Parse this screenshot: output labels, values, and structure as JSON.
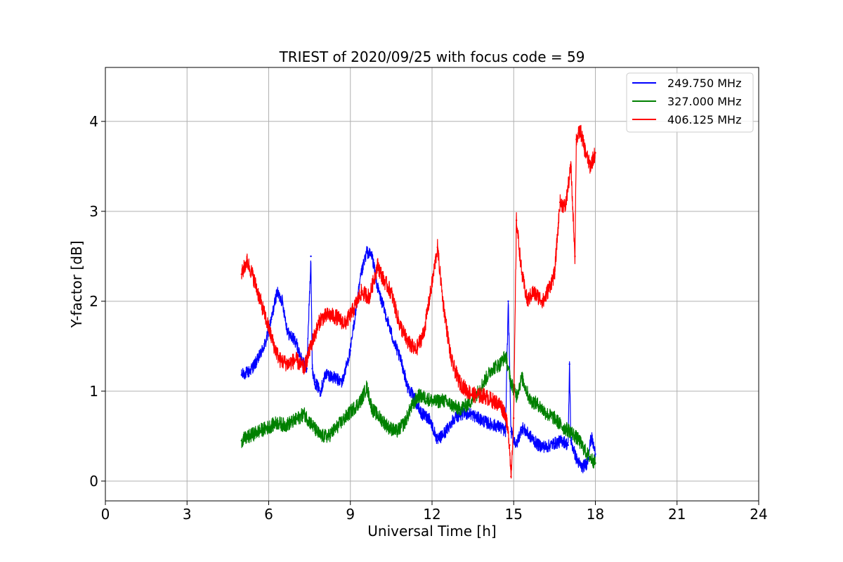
{
  "chart_data": {
    "type": "line",
    "title": "TRIEST of 2020/09/25 with focus code = 59",
    "xlabel": "Universal Time [h]",
    "ylabel": "Y-factor [dB]",
    "xlim": [
      0,
      24
    ],
    "ylim": [
      -0.22,
      4.6
    ],
    "xticks": [
      0,
      3,
      6,
      9,
      12,
      15,
      18,
      21,
      24
    ],
    "yticks": [
      0,
      1,
      2,
      3,
      4
    ],
    "grid": true,
    "legend_position": "top-right",
    "series": [
      {
        "name": "249.750 MHz",
        "color": "#0000ff",
        "noise": 0.07,
        "x": [
          5.0,
          5.3,
          5.6,
          5.9,
          6.1,
          6.3,
          6.5,
          6.7,
          7.0,
          7.2,
          7.4,
          7.55,
          7.6,
          7.7,
          7.9,
          8.1,
          8.4,
          8.7,
          9.0,
          9.2,
          9.4,
          9.6,
          9.8,
          10.0,
          10.3,
          10.6,
          10.9,
          11.1,
          11.3,
          11.6,
          11.9,
          12.2,
          12.5,
          12.8,
          13.1,
          13.4,
          13.7,
          14.0,
          14.3,
          14.5,
          14.7,
          14.8,
          14.9,
          15.1,
          15.3,
          15.6,
          15.9,
          16.2,
          16.5,
          16.8,
          17.0,
          17.05,
          17.1,
          17.3,
          17.5,
          17.7,
          17.85,
          18.0
        ],
        "y": [
          1.18,
          1.22,
          1.35,
          1.55,
          1.8,
          2.1,
          2.0,
          1.65,
          1.55,
          1.35,
          1.25,
          2.5,
          1.25,
          1.1,
          1.0,
          1.2,
          1.15,
          1.1,
          1.45,
          1.9,
          2.3,
          2.55,
          2.5,
          2.15,
          1.85,
          1.55,
          1.3,
          1.05,
          0.95,
          0.75,
          0.7,
          0.45,
          0.55,
          0.7,
          0.75,
          0.75,
          0.7,
          0.65,
          0.62,
          0.6,
          0.55,
          2.0,
          0.55,
          0.4,
          0.6,
          0.5,
          0.4,
          0.38,
          0.42,
          0.45,
          0.4,
          1.3,
          0.45,
          0.25,
          0.15,
          0.2,
          0.5,
          0.3
        ]
      },
      {
        "name": "327.000 MHz",
        "color": "#008000",
        "noise": 0.08,
        "x": [
          5.0,
          5.3,
          5.6,
          6.0,
          6.3,
          6.6,
          7.0,
          7.3,
          7.6,
          7.9,
          8.2,
          8.5,
          8.8,
          9.1,
          9.4,
          9.6,
          9.8,
          10.1,
          10.4,
          10.7,
          11.0,
          11.2,
          11.5,
          11.8,
          12.1,
          12.4,
          12.7,
          13.0,
          13.3,
          13.6,
          13.9,
          14.2,
          14.5,
          14.7,
          14.9,
          15.1,
          15.3,
          15.6,
          15.9,
          16.2,
          16.5,
          16.8,
          17.1,
          17.4,
          17.7,
          18.0
        ],
        "y": [
          0.45,
          0.5,
          0.55,
          0.6,
          0.65,
          0.62,
          0.68,
          0.75,
          0.62,
          0.5,
          0.5,
          0.6,
          0.7,
          0.8,
          0.9,
          1.05,
          0.8,
          0.7,
          0.6,
          0.55,
          0.65,
          0.8,
          0.95,
          0.92,
          0.88,
          0.9,
          0.85,
          0.8,
          0.85,
          0.95,
          1.1,
          1.25,
          1.3,
          1.4,
          1.1,
          0.95,
          1.15,
          0.9,
          0.85,
          0.75,
          0.7,
          0.6,
          0.55,
          0.45,
          0.3,
          0.2
        ]
      },
      {
        "name": "406.125 MHz",
        "color": "#ff0000",
        "noise": 0.09,
        "x": [
          5.0,
          5.2,
          5.4,
          5.6,
          5.8,
          6.0,
          6.2,
          6.4,
          6.7,
          7.0,
          7.3,
          7.6,
          7.9,
          8.2,
          8.5,
          8.8,
          9.1,
          9.4,
          9.7,
          10.0,
          10.2,
          10.5,
          10.8,
          11.1,
          11.4,
          11.7,
          12.0,
          12.2,
          12.4,
          12.7,
          13.0,
          13.3,
          13.6,
          13.9,
          14.2,
          14.5,
          14.7,
          14.85,
          14.9,
          15.0,
          15.1,
          15.3,
          15.5,
          15.7,
          15.9,
          16.1,
          16.3,
          16.5,
          16.7,
          16.9,
          17.1,
          17.25,
          17.3,
          17.45,
          17.6,
          17.8,
          18.0
        ],
        "y": [
          2.3,
          2.45,
          2.3,
          2.1,
          1.9,
          1.7,
          1.5,
          1.35,
          1.3,
          1.35,
          1.25,
          1.55,
          1.8,
          1.85,
          1.82,
          1.75,
          1.9,
          2.1,
          2.05,
          2.4,
          2.25,
          2.1,
          1.75,
          1.55,
          1.45,
          1.65,
          2.2,
          2.6,
          2.0,
          1.35,
          1.1,
          1.0,
          0.95,
          0.95,
          0.9,
          0.85,
          0.75,
          0.4,
          0.05,
          0.7,
          2.9,
          2.3,
          2.0,
          2.1,
          2.05,
          2.0,
          2.15,
          2.3,
          3.1,
          3.05,
          3.5,
          2.5,
          3.8,
          3.9,
          3.7,
          3.5,
          3.65
        ]
      }
    ]
  }
}
